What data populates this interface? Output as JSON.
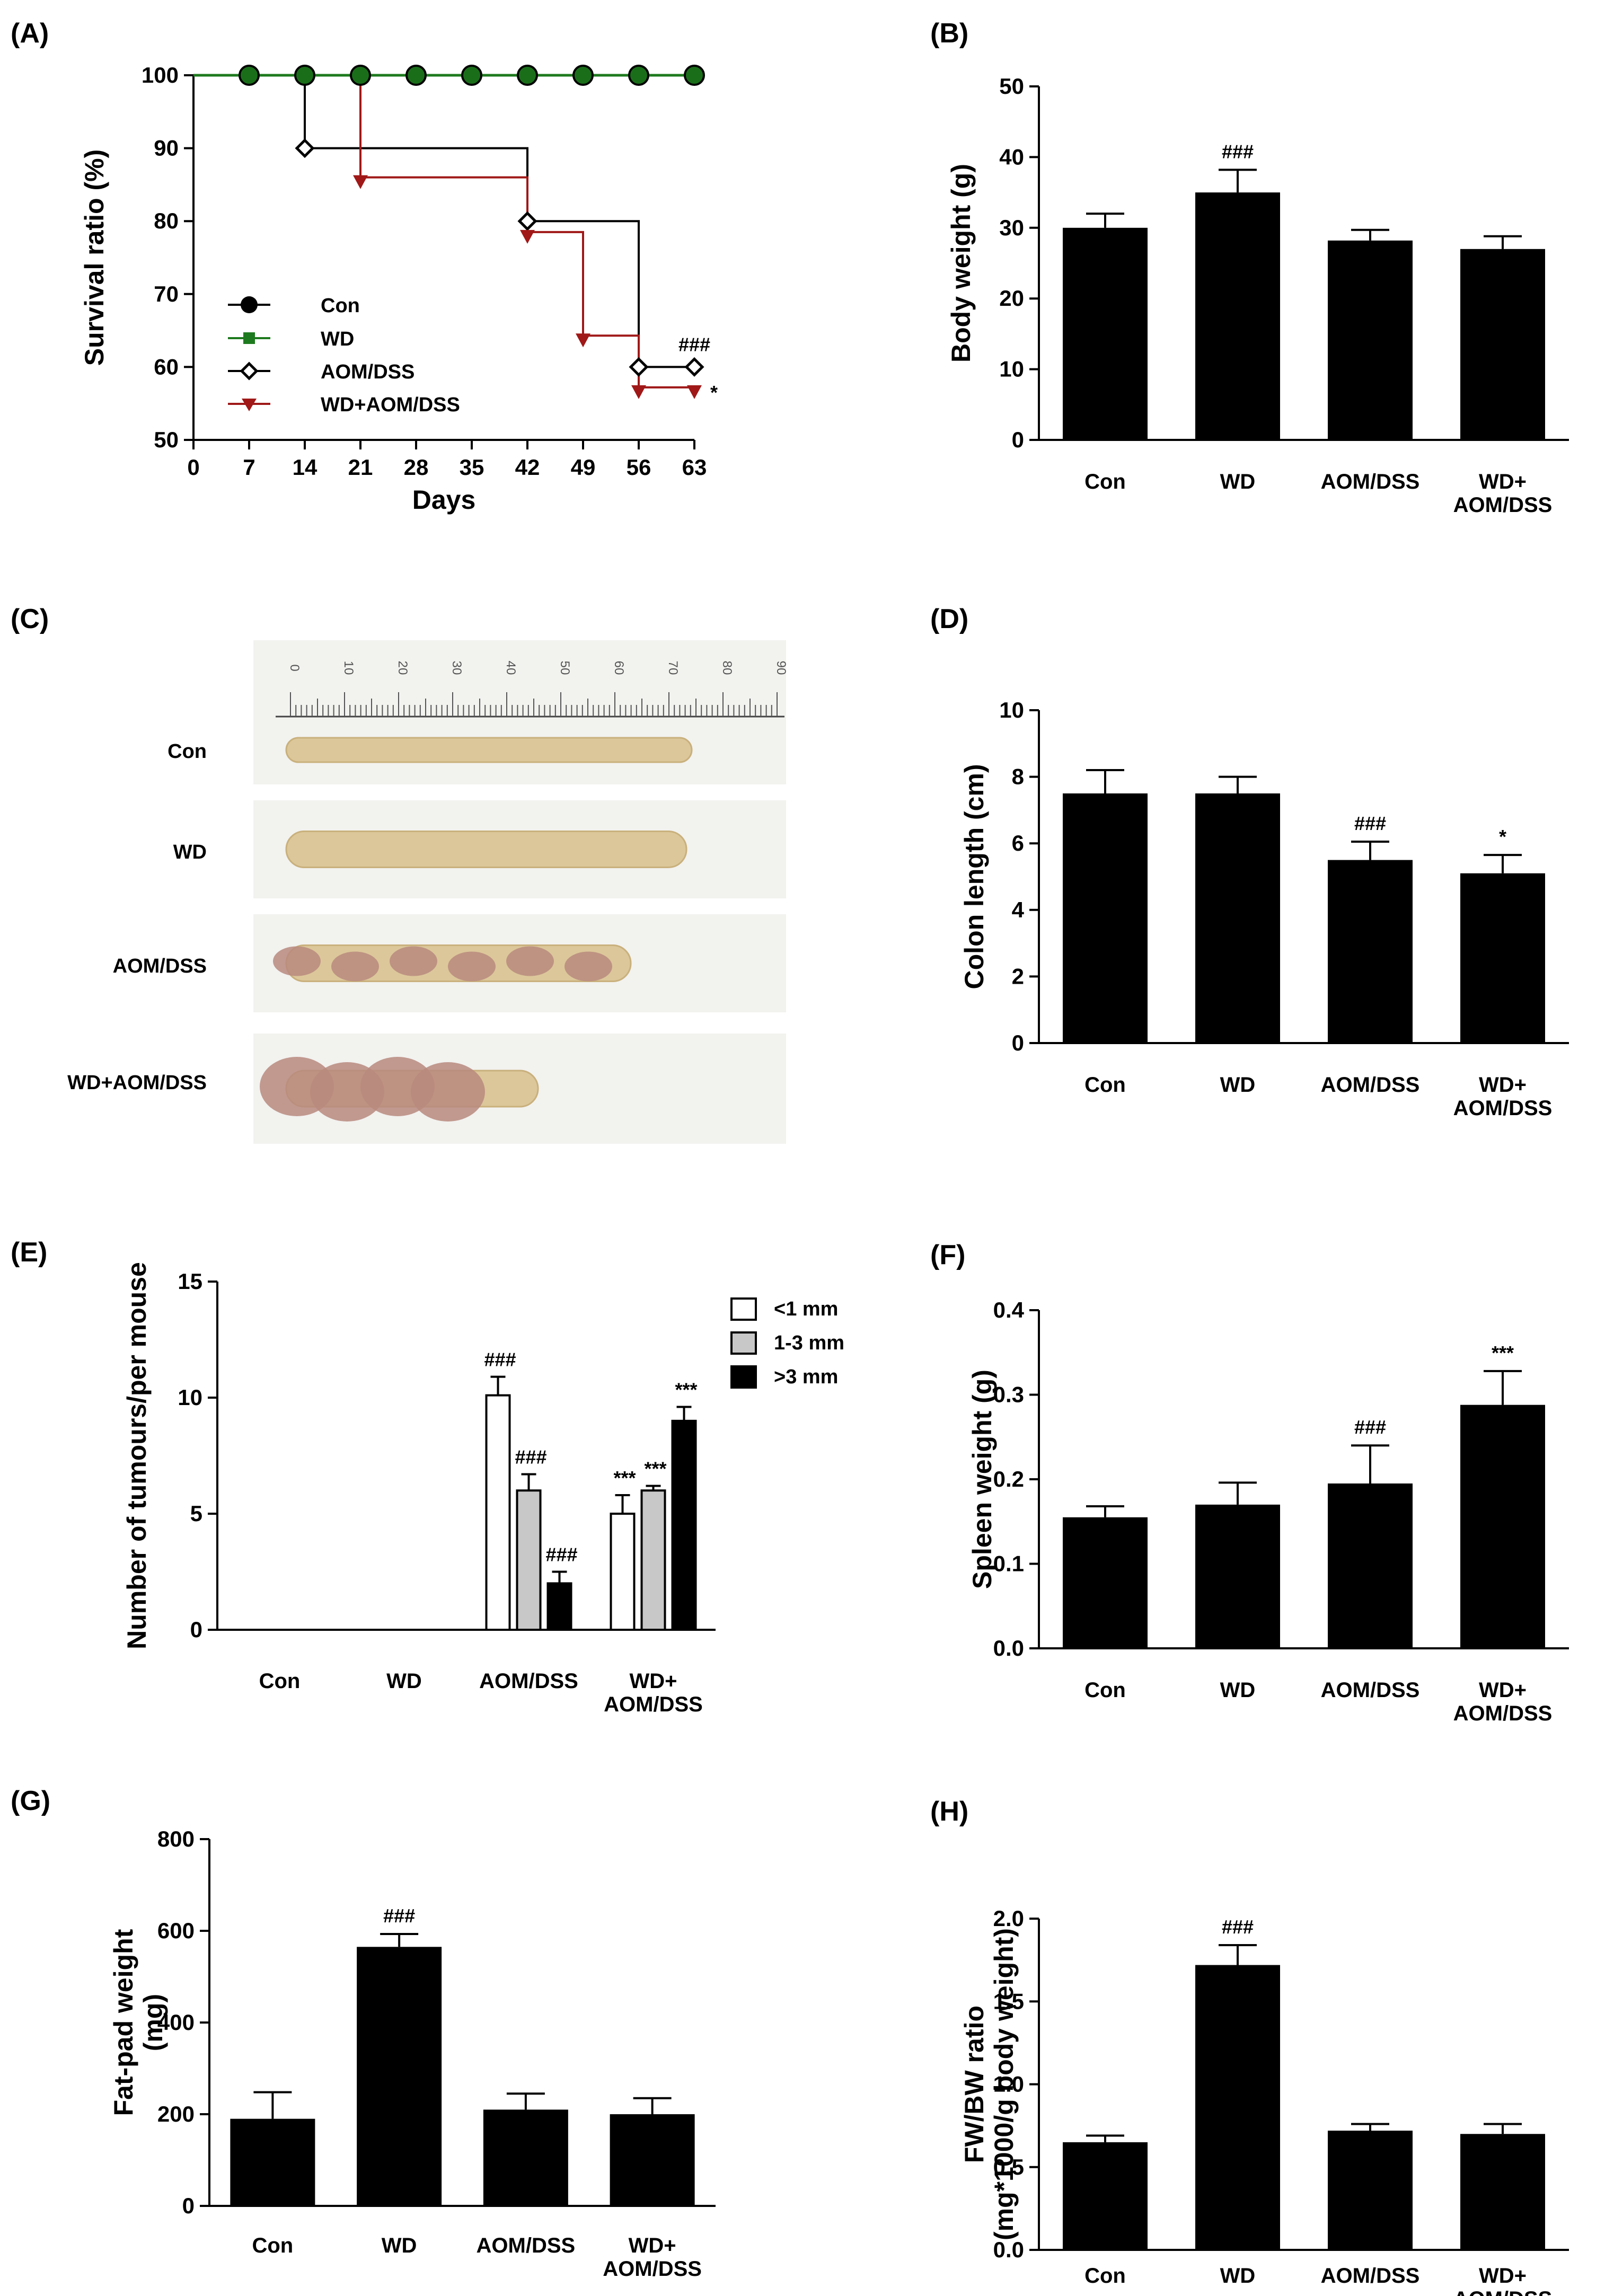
{
  "figure": {
    "panel_labels": [
      "(A)",
      "(B)",
      "(C)",
      "(D)",
      "(E)",
      "(F)",
      "(G)",
      "(H)"
    ]
  },
  "photo_panel": {
    "label": "(C)",
    "rows": [
      "Con",
      "WD",
      "AOM/DSS",
      "WD+AOM/DSS"
    ],
    "ruler_ticks": [
      "0",
      "10",
      "20",
      "30",
      "40",
      "50",
      "60",
      "70",
      "80",
      "90"
    ],
    "colors": {
      "tissue": "#dcc79a",
      "tumour": "#b88a7e",
      "background": "#f2f2ef"
    }
  },
  "chart_data": [
    {
      "panel": "(A)",
      "type": "line",
      "title": "",
      "xlabel": "Days",
      "ylabel": "Survival ratio  (%)",
      "xlim": [
        0,
        63
      ],
      "ylim": [
        50,
        100
      ],
      "xticks": [
        "0",
        "7",
        "14",
        "21",
        "28",
        "35",
        "42",
        "49",
        "56",
        "63"
      ],
      "yticks": [
        "50",
        "60",
        "70",
        "80",
        "90",
        "100"
      ],
      "series": [
        {
          "name": "Con",
          "color": "#000000",
          "marker": "circle",
          "x": [
            7,
            14,
            21,
            28,
            35,
            42,
            49,
            56,
            63
          ],
          "y": [
            100,
            100,
            100,
            100,
            100,
            100,
            100,
            100,
            100
          ]
        },
        {
          "name": "WD",
          "color": "#1e7a1e",
          "marker": "square",
          "x": [
            0,
            7,
            14,
            21,
            28,
            35,
            42,
            49,
            56,
            63
          ],
          "y": [
            100,
            100,
            100,
            100,
            100,
            100,
            100,
            100,
            100,
            100
          ]
        },
        {
          "name": "AOM/DSS",
          "color": "#000000",
          "marker": "diamond",
          "x": [
            14,
            42,
            56,
            63
          ],
          "y": [
            90,
            80,
            60,
            60
          ],
          "step_start": [
            0,
            100
          ]
        },
        {
          "name": "WD+AOM/DSS",
          "color": "#a01818",
          "marker": "triangle-down",
          "x": [
            21,
            42,
            49,
            56,
            63
          ],
          "y": [
            86,
            78.5,
            64.3,
            57.2,
            57.2
          ],
          "step_start": [
            0,
            100
          ]
        }
      ],
      "annotations": [
        "###",
        "*"
      ],
      "legend": "bottom-left"
    },
    {
      "panel": "(B)",
      "type": "bar",
      "ylabel": "Body weight (g)",
      "categories": [
        "Con",
        "WD",
        "AOM/DSS",
        "WD+\nAOM/DSS"
      ],
      "values": [
        30,
        35,
        28.2,
        27
      ],
      "errors": [
        2,
        3.2,
        1.5,
        1.8
      ],
      "ylim": [
        0,
        50
      ],
      "yticks": [
        "0",
        "10",
        "20",
        "30",
        "40",
        "50"
      ],
      "significance": [
        "",
        "###",
        "",
        ""
      ]
    },
    {
      "panel": "(D)",
      "type": "bar",
      "ylabel": "Colon length (cm)",
      "categories": [
        "Con",
        "WD",
        "AOM/DSS",
        "WD+\nAOM/DSS"
      ],
      "values": [
        7.5,
        7.5,
        5.5,
        5.1
      ],
      "errors": [
        0.7,
        0.5,
        0.55,
        0.55
      ],
      "ylim": [
        0,
        10
      ],
      "yticks": [
        "0",
        "2",
        "4",
        "6",
        "8",
        "10"
      ],
      "significance": [
        "",
        "",
        "###",
        "*"
      ]
    },
    {
      "panel": "(E)",
      "type": "bar",
      "ylabel": "Number of tumours/per mouse",
      "categories": [
        "Con",
        "WD",
        "AOM/DSS",
        "WD+\nAOM/DSS"
      ],
      "ylim": [
        0,
        15
      ],
      "yticks": [
        "0",
        "5",
        "10",
        "15"
      ],
      "series": [
        {
          "name": "<1 mm",
          "color": "#ffffff",
          "values": [
            0,
            0,
            10.1,
            5
          ],
          "errors": [
            0,
            0,
            0.8,
            0.8
          ],
          "significance": [
            "",
            "",
            "###",
            "***"
          ]
        },
        {
          "name": "1-3 mm",
          "color": "#c8c8c8",
          "values": [
            0,
            0,
            6,
            6
          ],
          "errors": [
            0,
            0,
            0.7,
            0.2
          ],
          "significance": [
            "",
            "",
            "###",
            "***"
          ]
        },
        {
          "name": ">3 mm",
          "color": "#000000",
          "values": [
            0,
            0,
            2,
            9
          ],
          "errors": [
            0,
            0,
            0.5,
            0.6
          ],
          "significance": [
            "",
            "",
            "###",
            "***"
          ]
        }
      ],
      "legend": "top-right"
    },
    {
      "panel": "(F)",
      "type": "bar",
      "ylabel": "Spleen weight (g)",
      "categories": [
        "Con",
        "WD",
        "AOM/DSS",
        "WD+\nAOM/DSS"
      ],
      "values": [
        0.155,
        0.17,
        0.195,
        0.288
      ],
      "errors": [
        0.013,
        0.026,
        0.045,
        0.04
      ],
      "ylim": [
        0,
        0.4
      ],
      "yticks": [
        "0.0",
        "0.1",
        "0.2",
        "0.3",
        "0.4"
      ],
      "significance": [
        "",
        "",
        "###",
        "***"
      ]
    },
    {
      "panel": "(G)",
      "type": "bar",
      "ylabel": "Fat-pad weight\n(mg)",
      "categories": [
        "Con",
        "WD",
        "AOM/DSS",
        "WD+\nAOM/DSS"
      ],
      "values": [
        190,
        565,
        210,
        200
      ],
      "errors": [
        58,
        28,
        35,
        35
      ],
      "ylim": [
        0,
        800
      ],
      "yticks": [
        "0",
        "200",
        "400",
        "600",
        "800"
      ],
      "significance": [
        "",
        "###",
        "",
        ""
      ]
    },
    {
      "panel": "(H)",
      "type": "bar",
      "ylabel": "FW/BW ratio\n(mg*1000/g body weight)",
      "categories": [
        "Con",
        "WD",
        "AOM/DSS",
        "WD+\nAOM/DSS"
      ],
      "values": [
        0.65,
        1.72,
        0.72,
        0.7
      ],
      "errors": [
        0.04,
        0.12,
        0.04,
        0.06
      ],
      "ylim": [
        0,
        2.0
      ],
      "yticks": [
        "0.0",
        "0.5",
        "1.0",
        "1.5",
        "2.0"
      ],
      "significance": [
        "",
        "###",
        "",
        ""
      ]
    }
  ]
}
